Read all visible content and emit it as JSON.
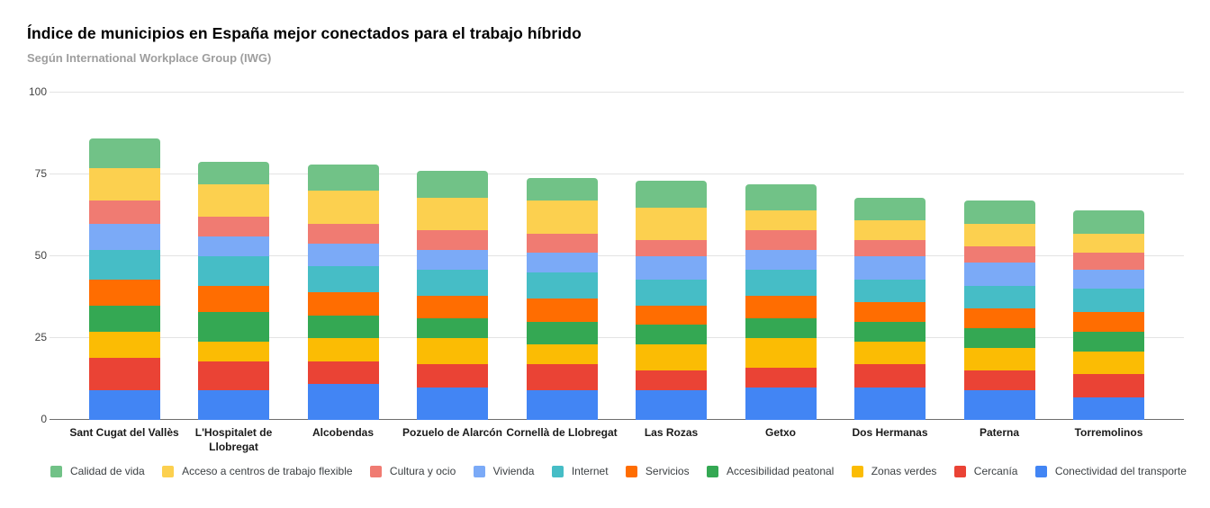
{
  "header": {
    "title": "Índice de municipios en España mejor conectados para el trabajo híbrido",
    "subtitle": "Según International Workplace Group (IWG)"
  },
  "chart_data": {
    "type": "bar",
    "stacked": true,
    "orientation": "vertical",
    "grid": true,
    "legend_position": "bottom",
    "legend_order": "reverse-of-stack",
    "ylim": [
      0,
      100
    ],
    "yticks": [
      0,
      25,
      50,
      75,
      100
    ],
    "categories": [
      "Sant Cugat del Vallès",
      "L'Hospitalet de Llobregat",
      "Alcobendas",
      "Pozuelo de Alarcón",
      "Cornellà de Llobregat",
      "Las Rozas",
      "Getxo",
      "Dos Hermanas",
      "Paterna",
      "Torremolinos"
    ],
    "totals": [
      86,
      79,
      78,
      76,
      74,
      73,
      72,
      68,
      67,
      64
    ],
    "series": [
      {
        "name": "Conectividad del transporte",
        "color": "#4285F4",
        "values": [
          9,
          9,
          11,
          10,
          9,
          9,
          10,
          10,
          9,
          7
        ]
      },
      {
        "name": "Cercanía",
        "color": "#EA4335",
        "values": [
          10,
          9,
          7,
          7,
          8,
          6,
          6,
          7,
          6,
          7
        ]
      },
      {
        "name": "Zonas verdes",
        "color": "#FBBC04",
        "values": [
          8,
          6,
          7,
          8,
          6,
          8,
          9,
          7,
          7,
          7
        ]
      },
      {
        "name": "Accesibilidad peatonal",
        "color": "#34A853",
        "values": [
          8,
          9,
          7,
          6,
          7,
          6,
          6,
          6,
          6,
          6
        ]
      },
      {
        "name": "Servicios",
        "color": "#FF6D01",
        "values": [
          8,
          8,
          7,
          7,
          7,
          6,
          7,
          6,
          6,
          6
        ]
      },
      {
        "name": "Internet",
        "color": "#46BDC6",
        "values": [
          9,
          9,
          8,
          8,
          8,
          8,
          8,
          7,
          7,
          7
        ]
      },
      {
        "name": "Vivienda",
        "color": "#7BAAF7",
        "values": [
          8,
          6,
          7,
          6,
          6,
          7,
          6,
          7,
          7,
          6
        ]
      },
      {
        "name": "Cultura y ocio",
        "color": "#F07B72",
        "values": [
          7,
          6,
          6,
          6,
          6,
          5,
          6,
          5,
          5,
          5
        ]
      },
      {
        "name": "Acceso a centros de trabajo flexible",
        "color": "#FCD04F",
        "values": [
          10,
          10,
          10,
          10,
          10,
          10,
          6,
          6,
          7,
          6
        ]
      },
      {
        "name": "Calidad de vida",
        "color": "#71C287",
        "values": [
          9,
          7,
          8,
          8,
          7,
          8,
          8,
          7,
          7,
          7
        ]
      }
    ]
  }
}
